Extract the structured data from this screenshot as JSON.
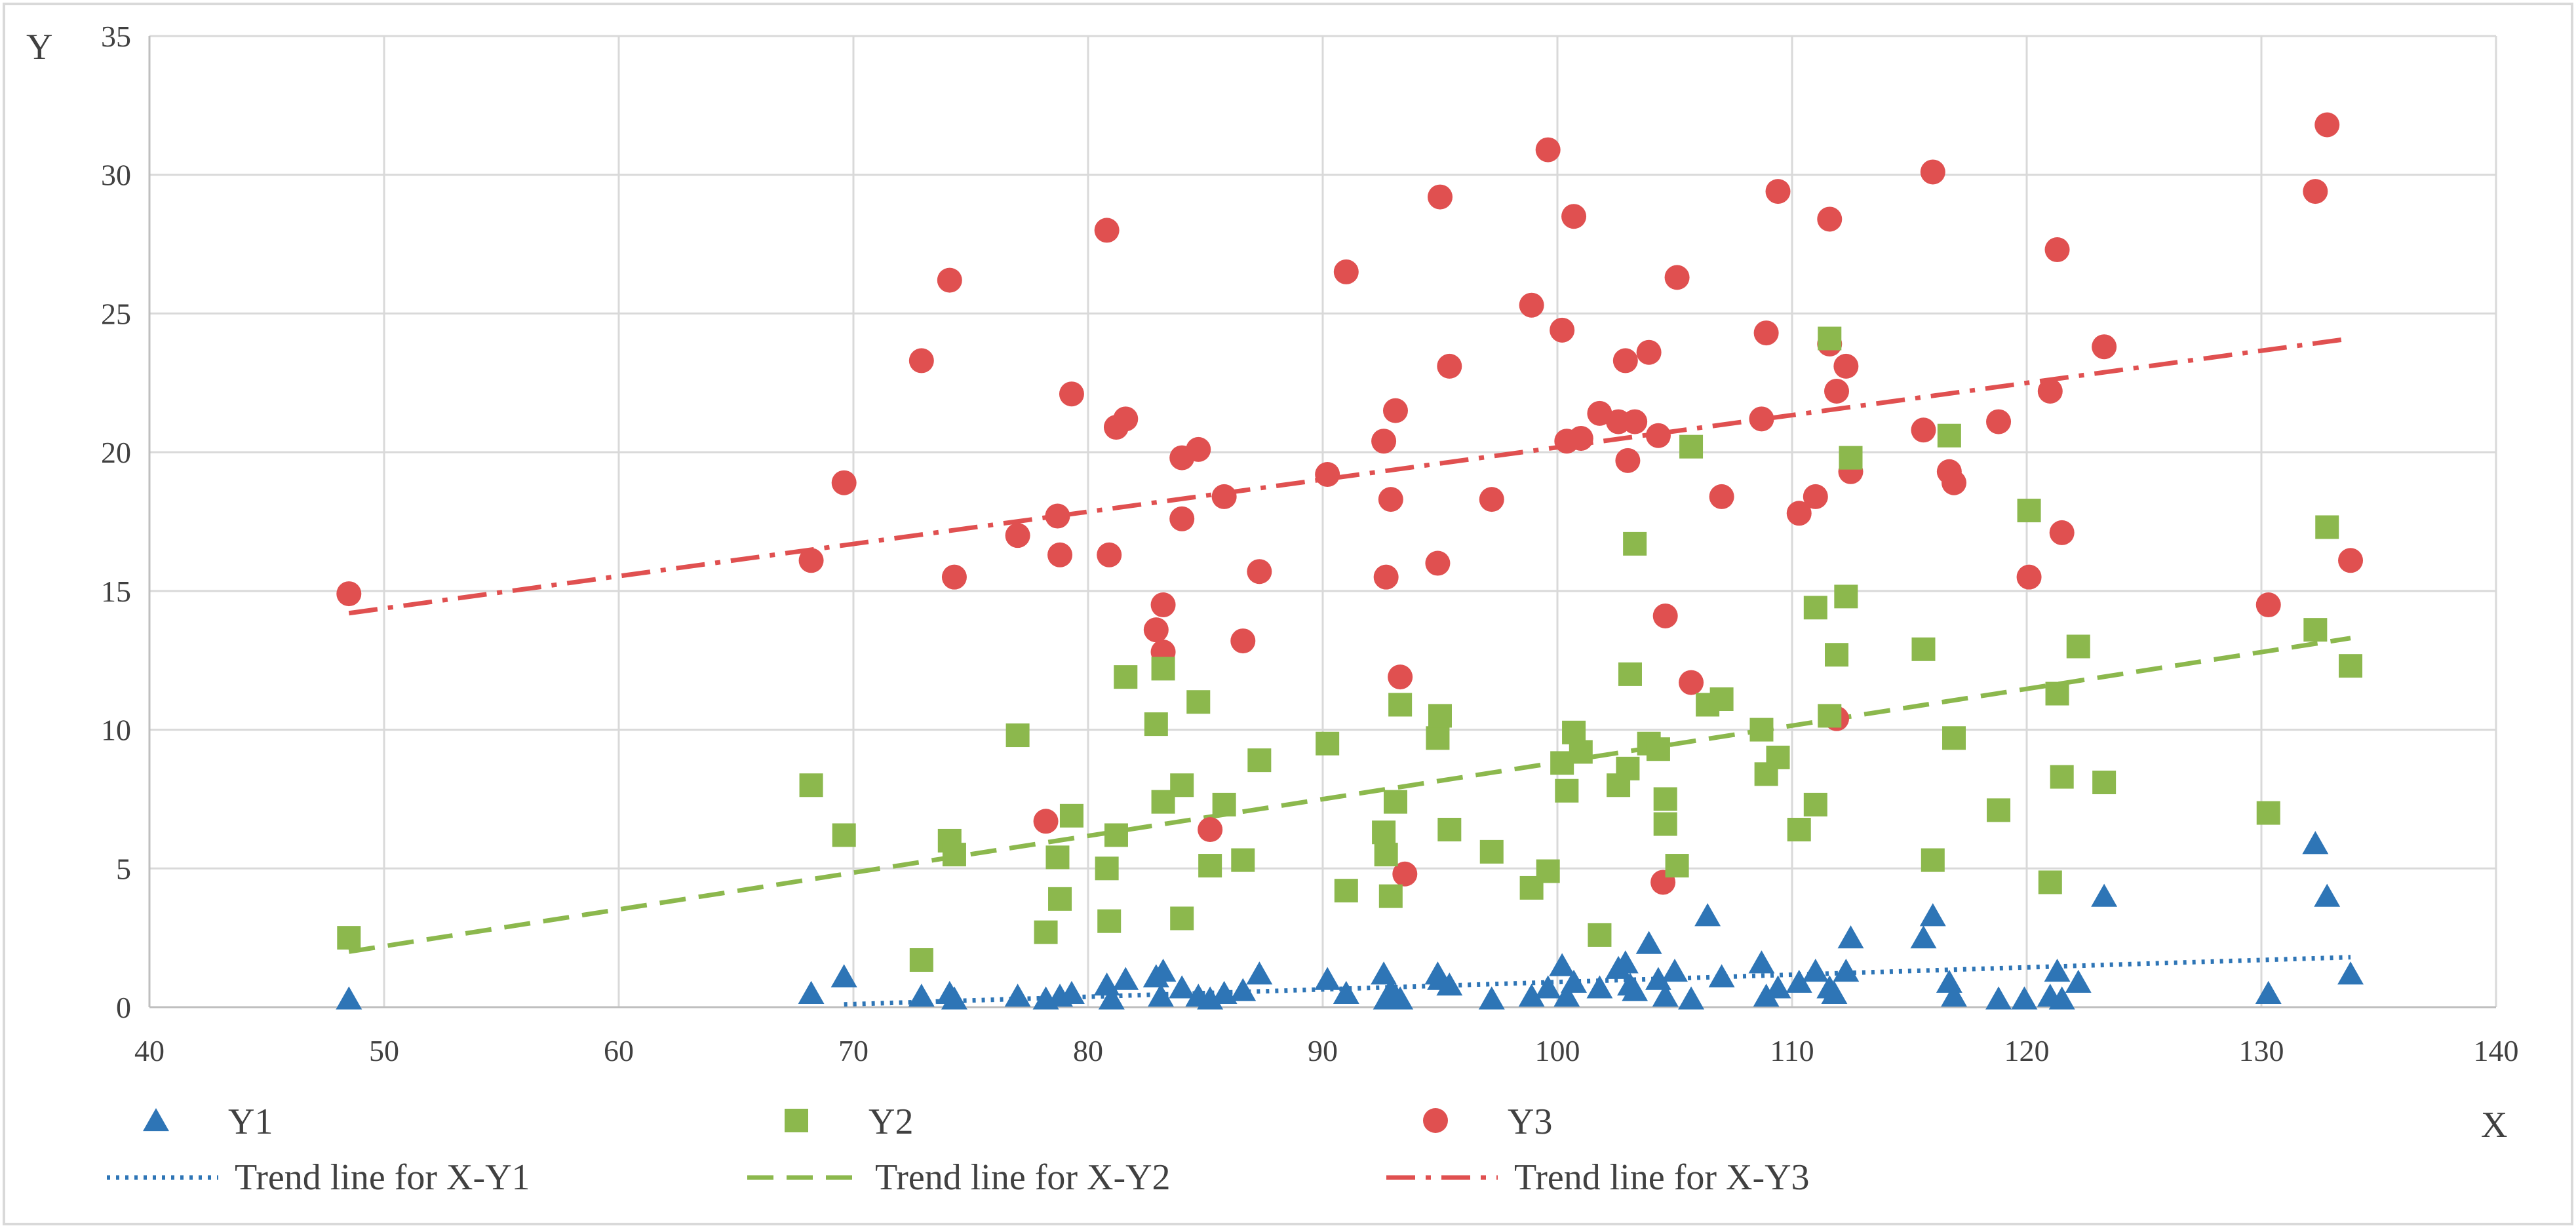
{
  "chart_data": {
    "type": "scatter",
    "title": "",
    "xlabel": "X",
    "ylabel": "Y",
    "xlim": [
      40,
      140
    ],
    "ylim": [
      0,
      35
    ],
    "xticks": [
      40,
      50,
      60,
      70,
      80,
      90,
      100,
      110,
      120,
      130,
      140
    ],
    "yticks": [
      0,
      5,
      10,
      15,
      20,
      25,
      30,
      35
    ],
    "grid": true,
    "legend_position": "bottom",
    "series": [
      {
        "name": "Y1",
        "marker": "triangle",
        "color": "#2E75B6",
        "points": [
          [
            48.5,
            0.3
          ],
          [
            68.2,
            0.5
          ],
          [
            69.6,
            1.1
          ],
          [
            72.9,
            0.4
          ],
          [
            74.1,
            0.5
          ],
          [
            74.3,
            0.3
          ],
          [
            77.0,
            0.4
          ],
          [
            78.2,
            0.3
          ],
          [
            78.8,
            0.4
          ],
          [
            79.3,
            0.5
          ],
          [
            80.8,
            0.8
          ],
          [
            81.0,
            0.3
          ],
          [
            81.6,
            1.0
          ],
          [
            82.9,
            1.1
          ],
          [
            83.2,
            1.3
          ],
          [
            83.1,
            0.4
          ],
          [
            84.0,
            0.7
          ],
          [
            84.7,
            0.4
          ],
          [
            85.2,
            0.3
          ],
          [
            85.8,
            0.5
          ],
          [
            86.6,
            0.6
          ],
          [
            87.3,
            1.2
          ],
          [
            90.2,
            1.0
          ],
          [
            91.0,
            0.5
          ],
          [
            92.6,
            1.2
          ],
          [
            92.7,
            0.3
          ],
          [
            92.9,
            0.6
          ],
          [
            93.1,
            0.4
          ],
          [
            93.3,
            0.3
          ],
          [
            94.9,
            1.2
          ],
          [
            95.0,
            1.0
          ],
          [
            95.4,
            0.8
          ],
          [
            97.2,
            0.3
          ],
          [
            98.9,
            0.4
          ],
          [
            99.6,
            0.7
          ],
          [
            100.2,
            1.5
          ],
          [
            100.4,
            0.4
          ],
          [
            100.7,
            0.9
          ],
          [
            101.8,
            0.7
          ],
          [
            102.6,
            1.4
          ],
          [
            102.9,
            1.6
          ],
          [
            103.1,
            0.8
          ],
          [
            103.3,
            0.6
          ],
          [
            103.9,
            2.3
          ],
          [
            104.3,
            1.0
          ],
          [
            104.6,
            0.4
          ],
          [
            105.0,
            1.3
          ],
          [
            105.7,
            0.3
          ],
          [
            106.4,
            3.3
          ],
          [
            107.0,
            1.1
          ],
          [
            108.7,
            1.6
          ],
          [
            108.9,
            0.4
          ],
          [
            109.4,
            0.7
          ],
          [
            110.3,
            0.9
          ],
          [
            111.0,
            1.3
          ],
          [
            111.6,
            0.7
          ],
          [
            111.8,
            0.5
          ],
          [
            112.3,
            1.3
          ],
          [
            112.5,
            2.5
          ],
          [
            115.6,
            2.5
          ],
          [
            116.0,
            3.3
          ],
          [
            116.7,
            0.9
          ],
          [
            116.9,
            0.4
          ],
          [
            118.8,
            0.3
          ],
          [
            119.9,
            0.3
          ],
          [
            121.0,
            0.4
          ],
          [
            121.3,
            1.3
          ],
          [
            121.5,
            0.3
          ],
          [
            122.2,
            0.9
          ],
          [
            123.3,
            4.0
          ],
          [
            130.3,
            0.5
          ],
          [
            132.3,
            5.9
          ],
          [
            132.8,
            4.0
          ],
          [
            133.8,
            1.2
          ]
        ],
        "trend_name": "Trend line for X-Y1",
        "trend": {
          "x": [
            69.6,
            133.8
          ],
          "y": [
            0.1,
            1.8
          ]
        }
      },
      {
        "name": "Y2",
        "marker": "square",
        "color": "#8CB84D",
        "points": [
          [
            48.5,
            2.5
          ],
          [
            68.2,
            8.0
          ],
          [
            69.6,
            6.2
          ],
          [
            72.9,
            1.7
          ],
          [
            74.1,
            6.0
          ],
          [
            74.3,
            5.5
          ],
          [
            77.0,
            9.8
          ],
          [
            78.2,
            2.7
          ],
          [
            78.7,
            5.4
          ],
          [
            78.8,
            3.9
          ],
          [
            79.3,
            6.9
          ],
          [
            80.8,
            5.0
          ],
          [
            80.9,
            3.1
          ],
          [
            81.2,
            6.2
          ],
          [
            81.6,
            11.9
          ],
          [
            82.9,
            10.2
          ],
          [
            83.2,
            12.2
          ],
          [
            83.2,
            7.4
          ],
          [
            84.0,
            3.2
          ],
          [
            84.0,
            8.0
          ],
          [
            84.7,
            11.0
          ],
          [
            85.2,
            5.1
          ],
          [
            85.8,
            7.3
          ],
          [
            86.6,
            5.3
          ],
          [
            87.3,
            8.9
          ],
          [
            90.2,
            9.5
          ],
          [
            91.0,
            4.2
          ],
          [
            92.6,
            6.3
          ],
          [
            92.7,
            5.5
          ],
          [
            92.9,
            4.0
          ],
          [
            93.1,
            7.4
          ],
          [
            93.3,
            10.9
          ],
          [
            94.9,
            9.7
          ],
          [
            95.0,
            10.5
          ],
          [
            95.4,
            6.4
          ],
          [
            97.2,
            5.6
          ],
          [
            98.9,
            4.3
          ],
          [
            99.6,
            4.9
          ],
          [
            100.2,
            8.8
          ],
          [
            100.4,
            7.8
          ],
          [
            100.7,
            9.9
          ],
          [
            101.0,
            9.2
          ],
          [
            101.8,
            2.6
          ],
          [
            102.6,
            8.0
          ],
          [
            103.0,
            8.6
          ],
          [
            103.1,
            12.0
          ],
          [
            103.3,
            16.7
          ],
          [
            103.9,
            9.5
          ],
          [
            104.3,
            9.3
          ],
          [
            104.6,
            7.5
          ],
          [
            104.6,
            6.6
          ],
          [
            105.1,
            5.1
          ],
          [
            105.7,
            20.2
          ],
          [
            106.4,
            10.9
          ],
          [
            107.0,
            11.1
          ],
          [
            108.7,
            10.0
          ],
          [
            108.9,
            8.4
          ],
          [
            109.4,
            9.0
          ],
          [
            110.3,
            6.4
          ],
          [
            111.0,
            7.3
          ],
          [
            111.0,
            14.4
          ],
          [
            111.6,
            24.1
          ],
          [
            111.6,
            10.5
          ],
          [
            111.9,
            12.7
          ],
          [
            112.3,
            14.8
          ],
          [
            112.5,
            19.8
          ],
          [
            115.6,
            12.9
          ],
          [
            116.0,
            5.3
          ],
          [
            116.7,
            20.6
          ],
          [
            116.9,
            9.7
          ],
          [
            118.8,
            7.1
          ],
          [
            120.1,
            17.9
          ],
          [
            121.0,
            4.5
          ],
          [
            121.3,
            11.3
          ],
          [
            121.5,
            8.3
          ],
          [
            122.2,
            13.0
          ],
          [
            123.3,
            8.1
          ],
          [
            130.3,
            7.0
          ],
          [
            132.3,
            13.6
          ],
          [
            132.8,
            17.3
          ],
          [
            133.8,
            12.3
          ]
        ],
        "trend_name": "Trend line for X-Y2",
        "trend": {
          "x": [
            48.5,
            133.8
          ],
          "y": [
            2.0,
            13.3
          ]
        }
      },
      {
        "name": "Y3",
        "marker": "circle",
        "color": "#E05050",
        "points": [
          [
            48.5,
            14.9
          ],
          [
            68.2,
            16.1
          ],
          [
            69.6,
            18.9
          ],
          [
            72.9,
            23.3
          ],
          [
            74.1,
            26.2
          ],
          [
            74.3,
            15.5
          ],
          [
            77.0,
            17.0
          ],
          [
            78.2,
            6.7
          ],
          [
            78.7,
            17.7
          ],
          [
            78.8,
            16.3
          ],
          [
            79.3,
            22.1
          ],
          [
            80.8,
            28.0
          ],
          [
            80.9,
            16.3
          ],
          [
            81.2,
            20.9
          ],
          [
            81.6,
            21.2
          ],
          [
            82.9,
            13.6
          ],
          [
            83.2,
            14.5
          ],
          [
            83.2,
            12.8
          ],
          [
            84.0,
            19.8
          ],
          [
            84.0,
            17.6
          ],
          [
            84.7,
            20.1
          ],
          [
            85.2,
            6.4
          ],
          [
            85.8,
            18.4
          ],
          [
            86.6,
            13.2
          ],
          [
            87.3,
            15.7
          ],
          [
            90.2,
            19.2
          ],
          [
            91.0,
            26.5
          ],
          [
            92.6,
            20.4
          ],
          [
            92.7,
            15.5
          ],
          [
            92.9,
            18.3
          ],
          [
            93.1,
            21.5
          ],
          [
            93.3,
            11.9
          ],
          [
            93.5,
            4.8
          ],
          [
            94.9,
            16.0
          ],
          [
            95.0,
            29.2
          ],
          [
            95.4,
            23.1
          ],
          [
            97.2,
            18.3
          ],
          [
            98.9,
            25.3
          ],
          [
            99.6,
            30.9
          ],
          [
            100.2,
            24.4
          ],
          [
            100.4,
            20.4
          ],
          [
            100.7,
            28.5
          ],
          [
            101.0,
            20.5
          ],
          [
            101.8,
            21.4
          ],
          [
            102.6,
            21.1
          ],
          [
            102.9,
            23.3
          ],
          [
            103.0,
            19.7
          ],
          [
            103.3,
            21.1
          ],
          [
            103.9,
            23.6
          ],
          [
            104.3,
            20.6
          ],
          [
            104.6,
            14.1
          ],
          [
            104.5,
            4.5
          ],
          [
            105.1,
            26.3
          ],
          [
            105.7,
            11.7
          ],
          [
            107.0,
            18.4
          ],
          [
            108.7,
            21.2
          ],
          [
            108.9,
            24.3
          ],
          [
            109.4,
            29.4
          ],
          [
            110.3,
            17.8
          ],
          [
            111.0,
            18.4
          ],
          [
            111.6,
            28.4
          ],
          [
            111.6,
            23.9
          ],
          [
            111.9,
            10.4
          ],
          [
            111.9,
            22.2
          ],
          [
            112.3,
            23.1
          ],
          [
            112.5,
            19.3
          ],
          [
            115.6,
            20.8
          ],
          [
            116.0,
            30.1
          ],
          [
            116.7,
            19.3
          ],
          [
            116.9,
            18.9
          ],
          [
            118.8,
            21.1
          ],
          [
            120.1,
            15.5
          ],
          [
            121.0,
            22.2
          ],
          [
            121.3,
            27.3
          ],
          [
            121.5,
            17.1
          ],
          [
            123.3,
            23.8
          ],
          [
            130.3,
            14.5
          ],
          [
            132.3,
            29.4
          ],
          [
            132.8,
            31.8
          ],
          [
            133.8,
            16.1
          ]
        ],
        "trend_name": "Trend line for X-Y3",
        "trend": {
          "x": [
            48.5,
            133.8
          ],
          "y": [
            14.2,
            24.1
          ]
        }
      }
    ]
  }
}
